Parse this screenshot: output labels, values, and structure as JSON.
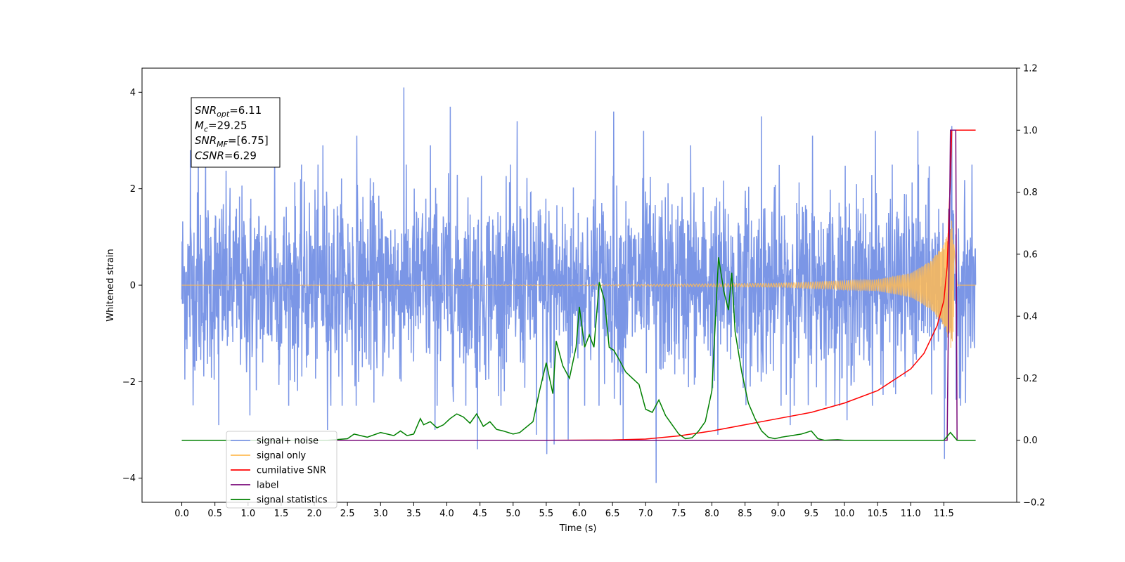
{
  "chart_data": {
    "type": "line",
    "title": "",
    "xlabel": "Time (s)",
    "ylabel": "Whitened strain",
    "ylabel_right": "",
    "xlim": [
      -0.6,
      12.6
    ],
    "ylim": [
      -4.5,
      4.5
    ],
    "ylim_right": [
      -0.2,
      1.2
    ],
    "grid": false,
    "legend_placement": "lower-left",
    "x_ticks": [
      0.0,
      0.5,
      1.0,
      1.5,
      2.0,
      2.5,
      3.0,
      3.5,
      4.0,
      4.5,
      5.0,
      5.5,
      6.0,
      6.5,
      7.0,
      7.5,
      8.0,
      8.5,
      9.0,
      9.5,
      10.0,
      10.5,
      11.0,
      11.5
    ],
    "x_tick_labels": [
      "0.0",
      "0.5",
      "1.0",
      "1.5",
      "2.0",
      "2.5",
      "3.0",
      "3.5",
      "4.0",
      "4.5",
      "5.0",
      "5.5",
      "6.0",
      "6.5",
      "7.0",
      "7.5",
      "8.0",
      "8.5",
      "9.0",
      "9.5",
      "10.0",
      "10.5",
      "11.0",
      "11.5"
    ],
    "y_ticks_left": [
      -4,
      -2,
      0,
      2,
      4
    ],
    "y_tick_labels_left": [
      "−4",
      "−2",
      "0",
      "2",
      "4"
    ],
    "y_ticks_right": [
      -0.2,
      0.0,
      0.2,
      0.4,
      0.6,
      0.8,
      1.0,
      1.2
    ],
    "y_tick_labels_right": [
      "−0.2",
      "0.0",
      "0.2",
      "0.4",
      "0.6",
      "0.8",
      "1.0",
      "1.2"
    ],
    "annotation": [
      {
        "base": "SNR",
        "sub": "opt",
        "value": "=6.11"
      },
      {
        "base": "M",
        "sub": "c",
        "value": "=29.25"
      },
      {
        "base": "SNR",
        "sub": "MF",
        "value": "=[6.75]"
      },
      {
        "base": "CSNR",
        "sub": "",
        "value": "=6.29"
      }
    ],
    "series": [
      {
        "name": "signal+ noise",
        "color": "#7b96e6",
        "axis": "left",
        "x_range": [
          0.0,
          11.98
        ],
        "envelope": 2.5,
        "x_spikes": [
          0.13,
          0.25,
          0.36,
          1.4,
          2.13,
          2.64,
          3.35,
          3.75,
          4.05,
          5.06,
          5.51,
          6.24,
          6.52,
          6.97,
          7.68,
          8.09,
          8.75,
          9.52,
          10.47,
          11.11,
          11.62
        ],
        "y_spikes": [
          2.8,
          2.7,
          2.6,
          3.1,
          2.9,
          3.1,
          4.1,
          2.9,
          3.7,
          3.4,
          -3.5,
          3.2,
          3.6,
          3.2,
          2.9,
          -3.1,
          3.5,
          3.1,
          3.2,
          3.2,
          3.3
        ],
        "x_dips": [
          0.56,
          1.03,
          2.2,
          3.82,
          4.46,
          5.35,
          5.62,
          5.83,
          6.66,
          7.16,
          9.18,
          10.04,
          11.51
        ],
        "y_dips": [
          -2.9,
          -2.7,
          -3.0,
          -3.0,
          -3.4,
          -3.1,
          -3.3,
          -3.2,
          -3.2,
          -4.1,
          -2.9,
          -2.8,
          -3.6
        ]
      },
      {
        "name": "signal only",
        "color": "#ffbb55",
        "axis": "left",
        "x": [
          0.0,
          6.0,
          9.0,
          10.5,
          11.0,
          11.3,
          11.5,
          11.6,
          11.62,
          11.7,
          11.98
        ],
        "y_amplitude": [
          0.0,
          0.01,
          0.04,
          0.12,
          0.25,
          0.5,
          0.85,
          1.25,
          1.4,
          0.0,
          0.0
        ]
      },
      {
        "name": "cumilative SNR",
        "color": "#ff0000",
        "axis": "right",
        "x": [
          0.0,
          5.5,
          6.5,
          7.0,
          7.5,
          8.0,
          8.5,
          9.0,
          9.5,
          10.0,
          10.5,
          11.0,
          11.2,
          11.4,
          11.5,
          11.55,
          11.6,
          11.62,
          11.65,
          11.98
        ],
        "y": [
          0.0,
          0.0,
          0.001,
          0.004,
          0.014,
          0.03,
          0.05,
          0.07,
          0.09,
          0.12,
          0.16,
          0.23,
          0.28,
          0.37,
          0.45,
          0.56,
          0.85,
          1.0,
          1.0,
          1.0
        ]
      },
      {
        "name": "label",
        "color": "#7a0a7a",
        "axis": "right",
        "x": [
          0.0,
          11.55,
          11.6,
          11.68,
          11.7,
          11.98
        ],
        "y": [
          0.0,
          0.0,
          1.0,
          1.0,
          0.0,
          0.0
        ]
      },
      {
        "name": "signal statistics",
        "color": "#008000",
        "axis": "right",
        "x": [
          0.0,
          2.2,
          2.5,
          2.6,
          2.8,
          3.0,
          3.2,
          3.3,
          3.4,
          3.5,
          3.6,
          3.65,
          3.75,
          3.85,
          3.95,
          4.05,
          4.15,
          4.25,
          4.35,
          4.45,
          4.55,
          4.65,
          4.75,
          4.85,
          5.0,
          5.1,
          5.3,
          5.4,
          5.5,
          5.6,
          5.65,
          5.75,
          5.85,
          5.95,
          6.0,
          6.08,
          6.15,
          6.22,
          6.3,
          6.38,
          6.45,
          6.52,
          6.6,
          6.7,
          6.8,
          6.9,
          7.0,
          7.1,
          7.2,
          7.3,
          7.4,
          7.5,
          7.6,
          7.7,
          7.8,
          7.9,
          8.0,
          8.1,
          8.18,
          8.25,
          8.3,
          8.35,
          8.45,
          8.55,
          8.65,
          8.75,
          8.85,
          8.95,
          9.05,
          9.2,
          9.35,
          9.5,
          9.6,
          9.7,
          9.8,
          9.9,
          10.0,
          11.5,
          11.6,
          11.7,
          11.98
        ],
        "y": [
          0.0,
          0.0,
          0.005,
          0.02,
          0.01,
          0.025,
          0.015,
          0.03,
          0.015,
          0.02,
          0.07,
          0.05,
          0.06,
          0.04,
          0.05,
          0.07,
          0.085,
          0.075,
          0.055,
          0.085,
          0.045,
          0.06,
          0.035,
          0.03,
          0.02,
          0.025,
          0.06,
          0.16,
          0.25,
          0.15,
          0.32,
          0.24,
          0.2,
          0.3,
          0.43,
          0.3,
          0.34,
          0.3,
          0.51,
          0.45,
          0.3,
          0.29,
          0.26,
          0.22,
          0.2,
          0.18,
          0.1,
          0.09,
          0.13,
          0.08,
          0.05,
          0.02,
          0.005,
          0.008,
          0.03,
          0.06,
          0.16,
          0.59,
          0.48,
          0.42,
          0.54,
          0.35,
          0.22,
          0.12,
          0.07,
          0.03,
          0.01,
          0.005,
          0.01,
          0.015,
          0.02,
          0.03,
          0.005,
          0.0,
          0.001,
          0.002,
          0.0,
          0.0,
          0.025,
          0.0,
          0.0
        ]
      }
    ]
  }
}
